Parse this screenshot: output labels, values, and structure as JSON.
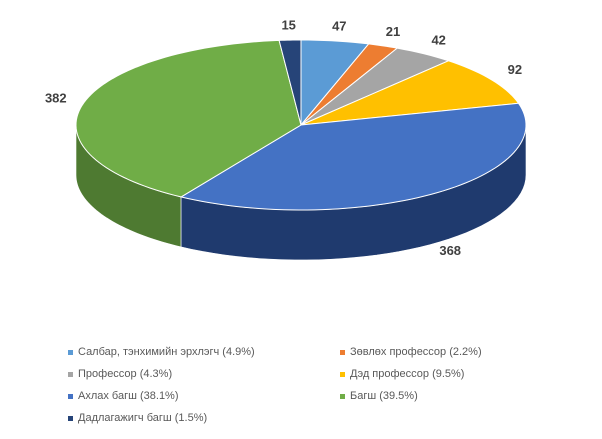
{
  "chart_data": {
    "type": "pie",
    "title": "",
    "categories": [
      "Салбар, тэнхимийн эрхлэгч",
      "Зөвлөх профессор",
      "Профессор",
      "Дэд профессор",
      "Ахлах багш",
      "Багш",
      "Дадлагажигч багш"
    ],
    "values": [
      47,
      21,
      42,
      92,
      368,
      382,
      15
    ],
    "data_labels": [
      "47",
      "21",
      "42",
      "92",
      "368",
      "382",
      "15"
    ],
    "legend_labels": [
      "Салбар, тэнхимийн эрхлэгч (4.9%)",
      "Зөвлөх профессор (2.2%)",
      "Профессор (4.3%)",
      "Дэд профессор (9.5%)",
      "Ахлах багш (38.1%)",
      "Багш (39.5%)",
      "Дадлагажигч багш (1.5%)"
    ],
    "colors": [
      "#5B9BD5",
      "#ED7D31",
      "#A5A5A5",
      "#FFC000",
      "#4472C4",
      "#70AD47",
      "#264478"
    ],
    "side_colors": [
      "#3F6E99",
      "#A85820",
      "#757575",
      "#B58800",
      "#1F3A6E",
      "#4E7A31",
      "#17294A"
    ],
    "style": "3d",
    "legend_position": "bottom"
  }
}
